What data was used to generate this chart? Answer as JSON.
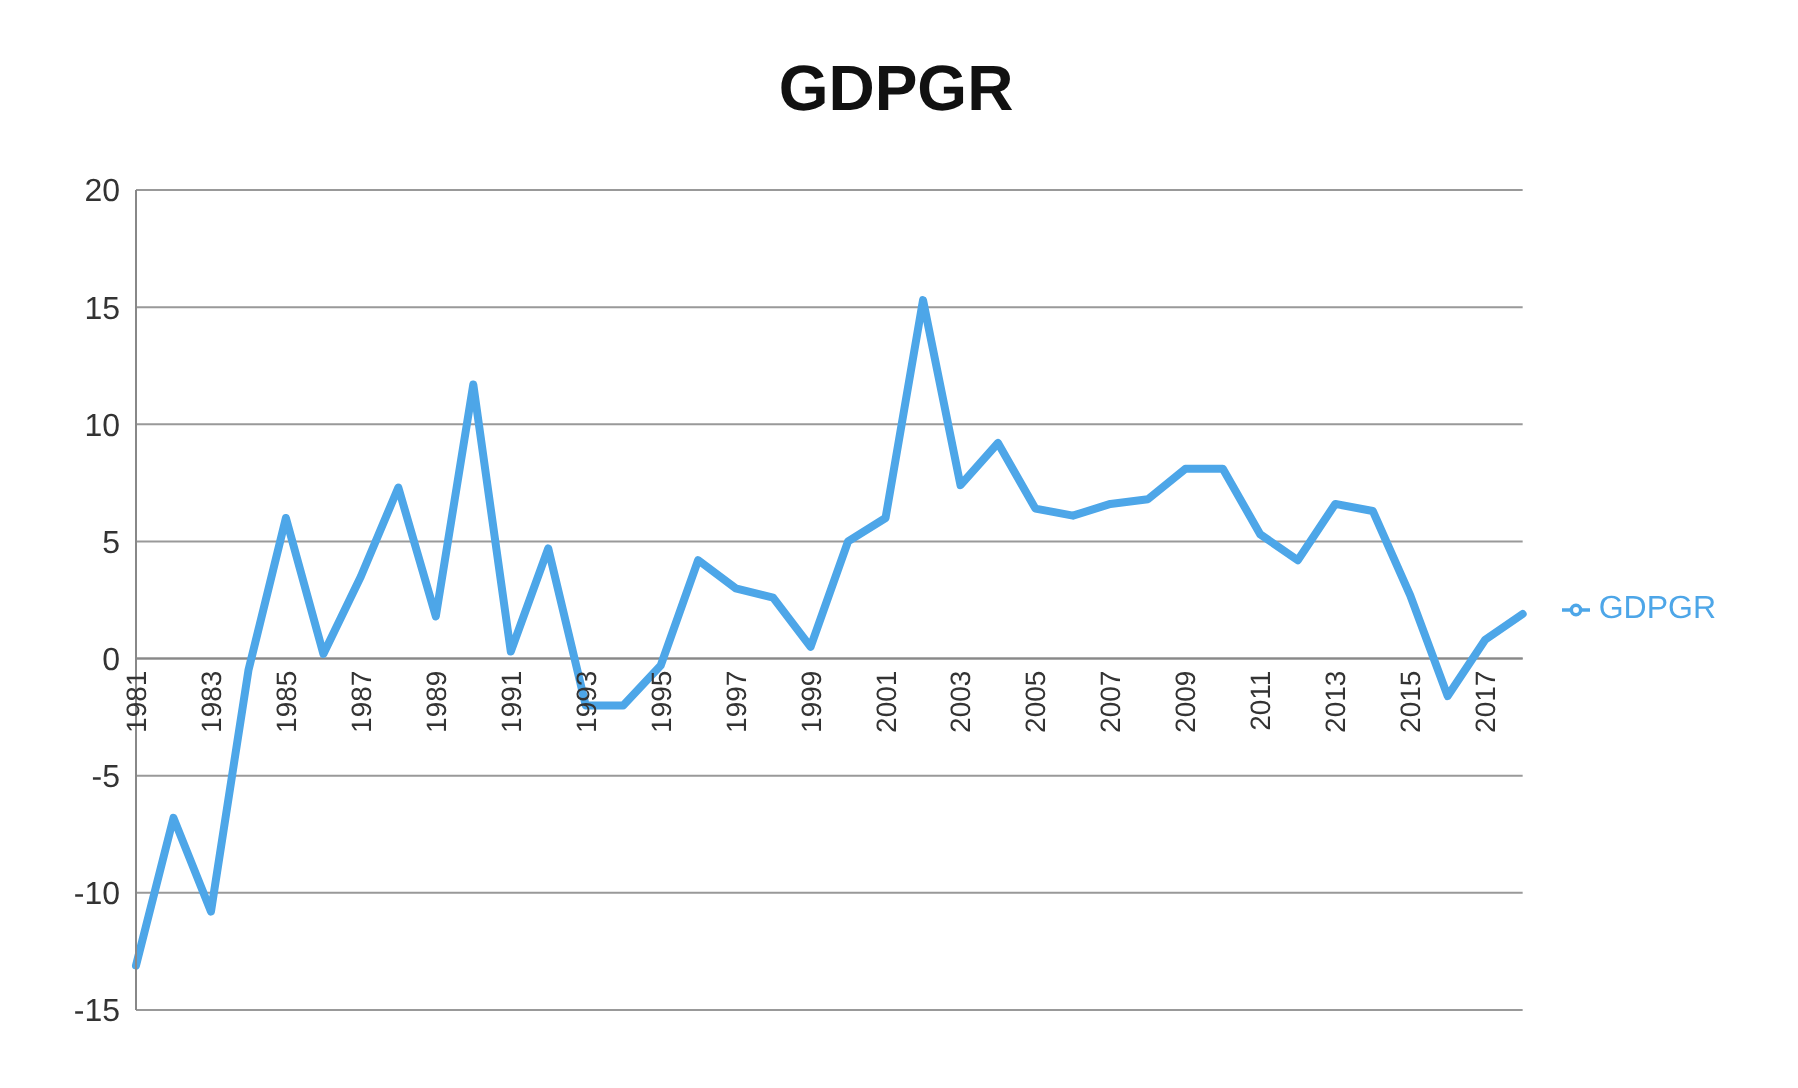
{
  "chart_data": {
    "type": "line",
    "title": "GDPGR",
    "categories": [
      "1981",
      null,
      "1983",
      null,
      "1985",
      null,
      "1987",
      null,
      "1989",
      null,
      "1991",
      null,
      "1993",
      null,
      "1995",
      null,
      "1997",
      null,
      "1999",
      null,
      "2001",
      null,
      "2003",
      null,
      "2005",
      null,
      "2007",
      null,
      "2009",
      null,
      "2011",
      null,
      "2013",
      null,
      "2015",
      null,
      "2017",
      null
    ],
    "series": [
      {
        "name": "GDPGR",
        "color": "#4da6e8",
        "values": [
          -13.1,
          -6.8,
          -10.8,
          -0.5,
          6.0,
          0.2,
          3.5,
          7.3,
          1.8,
          11.7,
          0.3,
          4.7,
          -2.0,
          -2.0,
          -0.3,
          4.2,
          3.0,
          2.6,
          0.5,
          5.0,
          6.0,
          15.3,
          7.4,
          9.2,
          6.4,
          6.1,
          6.6,
          6.8,
          8.1,
          8.1,
          5.3,
          4.2,
          6.6,
          6.3,
          2.7,
          -1.6,
          0.8,
          1.9
        ]
      }
    ],
    "ylim": [
      -15,
      20
    ],
    "yticks": [
      -15,
      -10,
      -5,
      0,
      5,
      10,
      15,
      20
    ],
    "grid": "y",
    "legend": "right",
    "marker": "none",
    "line_style": "solid"
  }
}
